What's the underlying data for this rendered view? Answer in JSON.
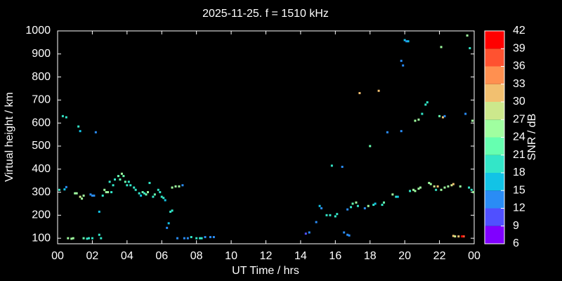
{
  "chart_data": {
    "type": "scatter",
    "title": "2025-11-25. f = 1510 kHz",
    "x_label": "UT Time / hrs",
    "y_label": "Virtual height / km",
    "colorbar_label": "SNR / dB",
    "xlim": [
      0,
      24
    ],
    "xticks": [
      {
        "value": 0,
        "label": "00"
      },
      {
        "value": 2,
        "label": "02"
      },
      {
        "value": 4,
        "label": "04"
      },
      {
        "value": 6,
        "label": "06"
      },
      {
        "value": 8,
        "label": "08"
      },
      10,
      12,
      14,
      16,
      18,
      20,
      22,
      {
        "value": 24,
        "label": "00"
      }
    ],
    "ylim": [
      76,
      1000
    ],
    "yticks": [
      100,
      200,
      300,
      400,
      500,
      600,
      700,
      800,
      900,
      1000
    ],
    "clim": [
      6,
      42
    ],
    "cticks": [
      6,
      9,
      12,
      15,
      18,
      21,
      24,
      27,
      30,
      33,
      36,
      39,
      42
    ],
    "colors": [
      "#8000ff",
      "#5050ff",
      "#2a8cf5",
      "#12c3e6",
      "#33e6c8",
      "#66ffb0",
      "#a0ffa0",
      "#cce88c",
      "#f2c070",
      "#ff9050",
      "#ff5230",
      "#ff0000"
    ],
    "x": [
      0.1,
      0.4,
      0.5,
      0.3,
      0.5,
      0.6,
      0.8,
      0.9,
      1.0,
      1.1,
      1.2,
      1.3,
      1.3,
      1.4,
      1.5,
      1.5,
      1.7,
      1.8,
      1.9,
      2.0,
      2.1,
      2.0,
      2.2,
      2.4,
      2.4,
      2.5,
      2.6,
      2.7,
      2.8,
      2.9,
      3.0,
      3.1,
      3.2,
      3.3,
      3.5,
      3.6,
      3.7,
      3.8,
      3.9,
      4.0,
      4.1,
      4.2,
      4.4,
      4.5,
      4.7,
      4.8,
      4.9,
      5.0,
      5.1,
      5.2,
      5.3,
      5.5,
      5.6,
      5.8,
      5.9,
      6.0,
      6.1,
      6.2,
      6.3,
      6.4,
      6.5,
      6.6,
      6.6,
      6.8,
      7.0,
      7.2,
      6.9,
      7.3,
      7.5,
      7.7,
      8.0,
      8.2,
      8.3,
      8.5,
      8.8,
      9.0,
      14.3,
      14.5,
      14.9,
      15.1,
      15.2,
      15.5,
      15.7,
      15.8,
      16.0,
      16.1,
      16.4,
      16.5,
      16.7,
      16.8,
      16.7,
      16.9,
      17.0,
      17.2,
      17.3,
      17.4,
      17.7,
      17.9,
      18.0,
      18.2,
      18.3,
      18.5,
      18.7,
      18.8,
      19.0,
      19.3,
      19.5,
      19.6,
      19.8,
      19.9,
      19.8,
      20.0,
      20.1,
      20.2,
      20.3,
      20.5,
      20.6,
      20.8,
      20.9,
      20.6,
      20.8,
      21.0,
      21.2,
      21.3,
      21.4,
      21.5,
      21.7,
      21.9,
      21.8,
      22.1,
      22.0,
      22.2,
      22.3,
      22.1,
      22.3,
      22.5,
      22.7,
      22.8,
      22.8,
      22.9,
      23.1,
      23.3,
      23.4,
      23.2,
      23.5,
      23.6,
      23.7,
      23.85,
      23.75,
      23.9,
      23.95
    ],
    "values": [
      310,
      312,
      322,
      630,
      625,
      100,
      98,
      100,
      295,
      295,
      585,
      565,
      280,
      272,
      285,
      100,
      98,
      100,
      290,
      285,
      285,
      100,
      560,
      215,
      115,
      100,
      285,
      310,
      300,
      300,
      345,
      300,
      330,
      355,
      370,
      355,
      380,
      370,
      345,
      330,
      345,
      330,
      320,
      310,
      295,
      285,
      300,
      295,
      290,
      300,
      340,
      280,
      290,
      310,
      300,
      280,
      275,
      265,
      145,
      165,
      215,
      220,
      320,
      325,
      325,
      330,
      100,
      100,
      100,
      105,
      100,
      100,
      100,
      105,
      105,
      105,
      120,
      125,
      170,
      240,
      230,
      200,
      200,
      415,
      195,
      205,
      410,
      125,
      115,
      112,
      225,
      235,
      250,
      255,
      240,
      730,
      230,
      240,
      500,
      245,
      250,
      740,
      245,
      255,
      560,
      290,
      280,
      280,
      870,
      850,
      565,
      960,
      955,
      955,
      305,
      310,
      305,
      315,
      320,
      610,
      615,
      640,
      680,
      690,
      340,
      335,
      325,
      325,
      310,
      310,
      630,
      625,
      630,
      930,
      320,
      325,
      330,
      335,
      110,
      108,
      108,
      108,
      108,
      325,
      640,
      980,
      320,
      310,
      925,
      610,
      300
    ],
    "snr": [
      20,
      16,
      12,
      20,
      20,
      26,
      26,
      24,
      24,
      24,
      20,
      17,
      28,
      26,
      24,
      22,
      20,
      18,
      12,
      12,
      12,
      20,
      12,
      15,
      20,
      20,
      18,
      24,
      24,
      26,
      20,
      20,
      18,
      20,
      22,
      22,
      24,
      22,
      22,
      20,
      20,
      18,
      20,
      20,
      18,
      15,
      22,
      20,
      22,
      24,
      18,
      20,
      22,
      18,
      18,
      18,
      20,
      16,
      12,
      15,
      18,
      20,
      24,
      26,
      24,
      12,
      12,
      12,
      12,
      20,
      18,
      18,
      18,
      12,
      12,
      12,
      10,
      12,
      12,
      15,
      12,
      18,
      20,
      18,
      20,
      18,
      12,
      12,
      12,
      12,
      12,
      18,
      22,
      24,
      20,
      30,
      12,
      24,
      22,
      20,
      16,
      30,
      18,
      22,
      12,
      24,
      20,
      15,
      12,
      12,
      12,
      15,
      12,
      15,
      20,
      24,
      24,
      26,
      24,
      26,
      26,
      20,
      20,
      18,
      24,
      26,
      28,
      30,
      20,
      24,
      22,
      30,
      12,
      24,
      24,
      26,
      28,
      30,
      30,
      27,
      30,
      40,
      36,
      24,
      12,
      26,
      20,
      18,
      20,
      24,
      24
    ]
  }
}
